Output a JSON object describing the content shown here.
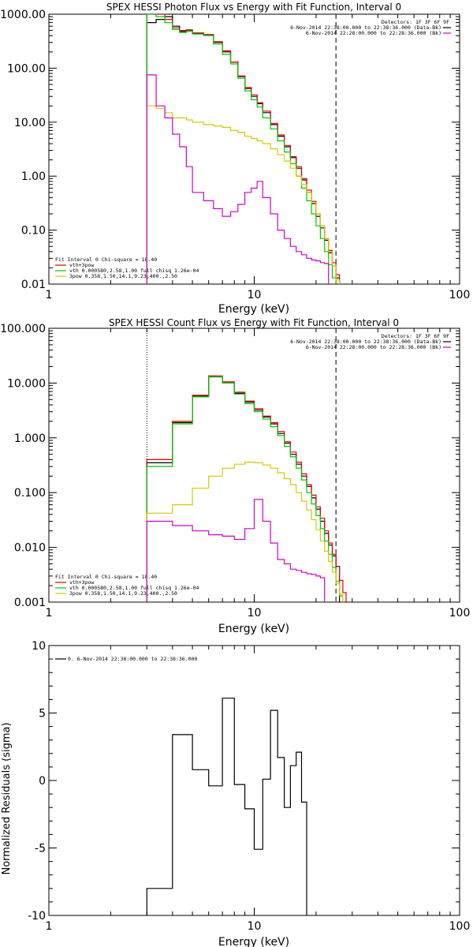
{
  "chart_data": [
    {
      "type": "line",
      "title": "SPEX HESSI Photon Flux vs Energy with Fit Function, Interval 0",
      "xlabel": "Energy (keV)",
      "ylabel": "",
      "xscale": "log",
      "yscale": "log",
      "xlim": [
        1,
        100
      ],
      "ylim": [
        0.01,
        1000
      ],
      "xticks": [
        {
          "v": 1,
          "label": "1"
        },
        {
          "v": 10,
          "label": "10"
        },
        {
          "v": 100,
          "label": "100"
        }
      ],
      "yticks": [
        {
          "v": 0.01,
          "label": "0.01"
        },
        {
          "v": 0.1,
          "label": "0.10"
        },
        {
          "v": 1,
          "label": "1.00"
        },
        {
          "v": 10,
          "label": "10.00"
        },
        {
          "v": 100,
          "label": "100.00"
        },
        {
          "v": 1000,
          "label": "1000.00"
        }
      ],
      "vlines": [
        {
          "x": 3.0,
          "style": "dotted",
          "color": "#000000"
        },
        {
          "x": 25.0,
          "style": "dashed",
          "color": "#000000"
        }
      ],
      "legend_tr": {
        "lines": [
          "Detectors: 1F 3F 6F 9F",
          "6-Nov-2014 22:38:00.000 to 22:38:36.000 (Data-Bk)",
          "6-Nov-2014 22:28:00.000 to 22:28:36.000 (Bk)"
        ],
        "colors": [
          "",
          "#000000",
          "#d000d0"
        ]
      },
      "legend_bl": {
        "lines": [
          "Fit Interval 0   Chi-square = 18.40",
          "vth+3pow",
          "vth 0.000580,2.58,1.00   full chisq 1.26e-04",
          "3pow 0.358,1.50,14.1,9.23,400.,2.50"
        ],
        "colors": [
          "",
          "#e00000",
          "#00c800",
          "#d8c800"
        ]
      },
      "edges": [
        3.0,
        3.33,
        3.67,
        4.0,
        4.33,
        4.67,
        5.0,
        5.67,
        6.33,
        7.0,
        7.67,
        8.33,
        9.0,
        9.67,
        10.33,
        11.0,
        12.0,
        13.0,
        14.0,
        15.0,
        16.0,
        17.0,
        18.0,
        19.0,
        20.0,
        21.0,
        22.0,
        23.0,
        24.0,
        25.0,
        26.0,
        27.0,
        28.0
      ],
      "series": [
        {
          "name": "",
          "color": "#000000",
          "values": [
            700,
            800,
            900,
            600,
            480,
            510,
            440,
            420,
            300,
            200,
            130,
            70,
            42,
            30,
            22,
            15,
            9,
            5.5,
            3.5,
            2.2,
            1.4,
            0.85,
            0.5,
            0.31,
            0.18,
            0.11,
            0.065,
            0.038,
            0.022,
            0.013,
            null,
            null
          ]
        },
        {
          "name": "vth+3pow",
          "color": "#e00000",
          "values": [
            1200,
            1000,
            800,
            560,
            500,
            500,
            450,
            420,
            310,
            210,
            130,
            72,
            44,
            32,
            23,
            16,
            9.5,
            5.8,
            3.7,
            2.3,
            1.5,
            0.9,
            0.55,
            0.34,
            0.2,
            0.12,
            0.07,
            0.042,
            0.025,
            0.015,
            0.009,
            null
          ]
        },
        {
          "name": "vth",
          "color": "#00c800",
          "values": [
            1000,
            900,
            700,
            520,
            460,
            480,
            430,
            400,
            280,
            180,
            120,
            65,
            38,
            26,
            19,
            12,
            7.5,
            4.5,
            2.8,
            1.7,
            1.0,
            0.6,
            0.35,
            0.2,
            0.12,
            0.07,
            0.04,
            0.023,
            0.013,
            0.008,
            null,
            null
          ]
        },
        {
          "name": "3pow",
          "color": "#d8c800",
          "values": [
            20,
            18,
            15,
            12,
            12,
            11,
            10,
            9,
            8.5,
            8,
            7,
            6.5,
            5.5,
            5,
            4.5,
            4,
            3.2,
            2.5,
            1.9,
            1.4,
            1.0,
            0.7,
            0.5,
            0.32,
            0.2,
            0.12,
            0.07,
            0.04,
            0.022,
            0.012,
            null,
            null
          ]
        },
        {
          "name": "Bk",
          "color": "#d000d0",
          "values": [
            75,
            20,
            12,
            6,
            3.5,
            1.5,
            0.5,
            0.35,
            0.25,
            0.18,
            0.22,
            0.3,
            0.5,
            0.6,
            0.8,
            0.4,
            0.2,
            0.1,
            0.07,
            0.05,
            0.04,
            0.035,
            0.03,
            0.028,
            0.027,
            0.025,
            0.024,
            null,
            null,
            null,
            null,
            null
          ]
        }
      ]
    },
    {
      "type": "line",
      "title": "SPEX HESSI Count Flux vs Energy with Fit Function, Interval 0",
      "xlabel": "Energy (keV)",
      "ylabel": "",
      "xscale": "log",
      "yscale": "log",
      "xlim": [
        1,
        100
      ],
      "ylim": [
        0.001,
        100
      ],
      "xticks": [
        {
          "v": 1,
          "label": "1"
        },
        {
          "v": 10,
          "label": "10"
        },
        {
          "v": 100,
          "label": "100"
        }
      ],
      "yticks": [
        {
          "v": 0.001,
          "label": "0.001"
        },
        {
          "v": 0.01,
          "label": "0.010"
        },
        {
          "v": 0.1,
          "label": "0.100"
        },
        {
          "v": 1,
          "label": "1.000"
        },
        {
          "v": 10,
          "label": "10.000"
        },
        {
          "v": 100,
          "label": "100.000"
        }
      ],
      "vlines": [
        {
          "x": 3.0,
          "style": "dotted",
          "color": "#000000"
        },
        {
          "x": 25.0,
          "style": "dashed",
          "color": "#000000"
        }
      ],
      "legend_tr": {
        "lines": [
          "Detectors: 1F 3F 6F 9F",
          "6-Nov-2014 22:38:00.000 to 22:38:36.000 (Data-Bk)",
          "6-Nov-2014 22:28:00.000 to 22:28:36.000 (Bk)"
        ],
        "colors": [
          "",
          "#000000",
          "#d000d0"
        ]
      },
      "legend_bl": {
        "lines": [
          "Fit Interval 0   Chi-square = 18.40",
          "vth+3pow",
          "vth 0.000580,2.58,1.00   full chisq 1.26e-04",
          "3pow 0.358,1.50,14.1,9.23,400.,2.50"
        ],
        "colors": [
          "",
          "#e00000",
          "#00c800",
          "#d8c800"
        ]
      },
      "edges": [
        3.0,
        4.0,
        5.0,
        6.0,
        7.0,
        8.0,
        9.0,
        10.0,
        11.0,
        12.0,
        13.0,
        14.0,
        15.0,
        16.0,
        17.0,
        18.0,
        19.0,
        20.0,
        21.0,
        22.0,
        23.0,
        24.0,
        25.0,
        26.0,
        27.0,
        28.0
      ],
      "series": [
        {
          "name": "",
          "color": "#000000",
          "values": [
            0.35,
            1.9,
            5.8,
            13,
            10,
            6.5,
            4.5,
            3.2,
            2.4,
            1.8,
            1.2,
            0.8,
            0.5,
            0.33,
            0.2,
            0.13,
            0.08,
            0.05,
            0.03,
            0.018,
            0.011,
            0.007,
            0.0045,
            null,
            null
          ]
        },
        {
          "name": "vth+3pow",
          "color": "#e00000",
          "values": [
            0.4,
            2.0,
            6.0,
            13.5,
            10.5,
            6.8,
            4.7,
            3.4,
            2.5,
            1.9,
            1.3,
            0.85,
            0.55,
            0.36,
            0.22,
            0.14,
            0.09,
            0.055,
            0.034,
            0.02,
            0.012,
            0.0075,
            0.0045,
            0.0025,
            0.0015
          ]
        },
        {
          "name": "vth",
          "color": "#00c800",
          "values": [
            0.3,
            1.8,
            5.6,
            13,
            10,
            6.3,
            4.2,
            3.0,
            2.2,
            1.6,
            1.1,
            0.7,
            0.45,
            0.28,
            0.17,
            0.1,
            0.062,
            0.038,
            0.022,
            0.013,
            0.0075,
            0.0043,
            0.0024,
            0.0013,
            null
          ]
        },
        {
          "name": "3pow",
          "color": "#d8c800",
          "values": [
            0.042,
            0.06,
            0.12,
            0.2,
            0.28,
            0.33,
            0.36,
            0.35,
            0.32,
            0.28,
            0.23,
            0.18,
            0.14,
            0.1,
            0.07,
            0.048,
            0.032,
            0.021,
            0.013,
            0.0085,
            0.0055,
            0.0035,
            0.0022,
            0.0014,
            null
          ]
        },
        {
          "name": "Bk",
          "color": "#d000d0",
          "values": [
            0.03,
            0.025,
            0.02,
            0.017,
            0.016,
            0.014,
            0.022,
            0.075,
            0.03,
            0.012,
            0.006,
            0.005,
            0.004,
            0.0038,
            0.0035,
            0.0033,
            0.0032,
            0.003,
            0.0028,
            null,
            null,
            null,
            null,
            null,
            null
          ]
        }
      ]
    },
    {
      "type": "line",
      "title": "",
      "xlabel": "Energy (keV)",
      "ylabel": "Normalized Residuals (sigma)",
      "xscale": "log",
      "yscale": "linear",
      "xlim": [
        1,
        100
      ],
      "ylim": [
        -10,
        10
      ],
      "xticks": [
        {
          "v": 1,
          "label": "1"
        },
        {
          "v": 10,
          "label": "10"
        },
        {
          "v": 100,
          "label": "100"
        }
      ],
      "yticks": [
        {
          "v": -10,
          "label": "-10"
        },
        {
          "v": -5,
          "label": "-5"
        },
        {
          "v": 0,
          "label": "0"
        },
        {
          "v": 5,
          "label": "5"
        },
        {
          "v": 10,
          "label": "10"
        }
      ],
      "vlines": [],
      "legend_tl": {
        "lines": [
          "0. 6-Nov-2014 22:38:00.000 to 22:38:36.000"
        ],
        "colors": [
          "#000000"
        ]
      },
      "edges": [
        3.0,
        4.0,
        5.0,
        6.0,
        7.0,
        8.0,
        9.0,
        10.0,
        11.0,
        12.0,
        13.0,
        14.0,
        15.0,
        16.0,
        17.0,
        18.0,
        19.0,
        20.0,
        21.0,
        22.0,
        23.0,
        24.0,
        25.0
      ],
      "series": [
        {
          "name": "",
          "color": "#000000",
          "values": [
            -8.0,
            3.4,
            0.8,
            -0.4,
            6.1,
            -0.3,
            -2.1,
            -5.1,
            0.1,
            5.2,
            1.7,
            -2.0,
            1.1,
            2.1,
            -1.6,
            null
          ]
        }
      ]
    }
  ]
}
